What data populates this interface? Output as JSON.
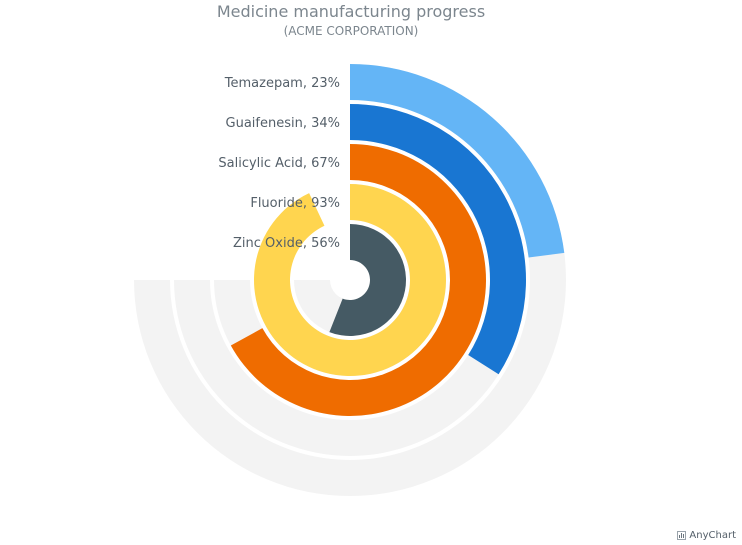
{
  "chart_data": {
    "type": "radial-bar",
    "title": "Medicine manufacturing progress",
    "subtitle": "(ACME CORPORATION)",
    "max": 100,
    "track_color": "#f3f3f3",
    "series": [
      {
        "label": "Temazepam, 23%",
        "value": 23,
        "color": "#64b5f6"
      },
      {
        "label": "Guaifenesin, 34%",
        "value": 34,
        "color": "#1976d2"
      },
      {
        "label": "Salicylic Acid, 67%",
        "value": 67,
        "color": "#ef6c00"
      },
      {
        "label": "Fluoride, 93%",
        "value": 93,
        "color": "#ffd54f"
      },
      {
        "label": "Zinc Oxide, 56%",
        "value": 56,
        "color": "#455a64"
      }
    ]
  },
  "credits": {
    "text": "AnyChart"
  }
}
